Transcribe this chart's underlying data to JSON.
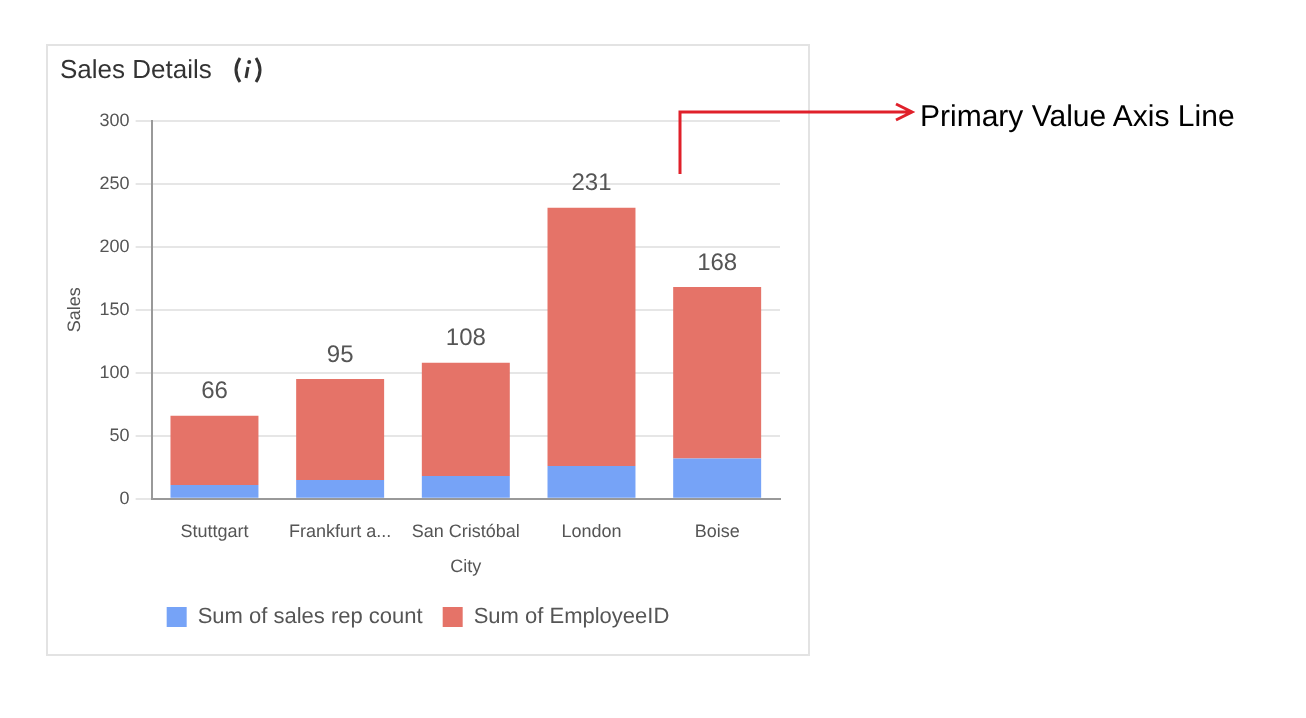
{
  "chart_data": {
    "type": "bar",
    "title": "Sales Details",
    "xlabel": "City",
    "ylabel": "Sales",
    "categories": [
      "Stuttgart",
      "Frankfurt a...",
      "San Cristóbal",
      "London",
      "Boise"
    ],
    "series": [
      {
        "name": "Sum of sales rep count",
        "color": "#76a3f7",
        "values": [
          11,
          15,
          18,
          26,
          32
        ]
      },
      {
        "name": "Sum of EmployeeID",
        "color": "#e57368",
        "values": [
          55,
          80,
          90,
          205,
          136
        ]
      }
    ],
    "stacked": true,
    "totals": [
      "66",
      "95",
      "108",
      "231",
      "168"
    ],
    "ylim": [
      0,
      300
    ],
    "yticks": [
      0,
      50,
      100,
      150,
      200,
      250,
      300
    ],
    "grid": "y",
    "legend": "bottom",
    "annotations": [
      "Primary Value Axis Line"
    ]
  }
}
